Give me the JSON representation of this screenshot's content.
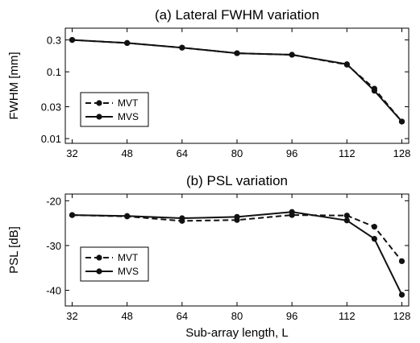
{
  "chart_data": [
    {
      "type": "line",
      "title": "(a) Lateral FWHM variation",
      "xlabel": "",
      "ylabel": "FWHM [mm]",
      "yscale": "log",
      "xlim": [
        30,
        130
      ],
      "ylim": [
        0.0085,
        0.45
      ],
      "xticks": [
        32,
        48,
        64,
        80,
        96,
        112,
        128
      ],
      "yticks": [
        0.01,
        0.03,
        0.1,
        0.3
      ],
      "ytick_labels": [
        "0.01",
        "0.03",
        "0.1",
        "0.3"
      ],
      "grid": false,
      "legend_position": "bottom-left",
      "x": [
        32,
        48,
        64,
        80,
        96,
        112,
        120,
        128
      ],
      "series": [
        {
          "name": "MVT",
          "style": "dashed",
          "values": [
            0.3,
            0.27,
            0.23,
            0.19,
            0.18,
            0.128,
            0.056,
            0.018
          ]
        },
        {
          "name": "MVS",
          "style": "solid",
          "values": [
            0.3,
            0.27,
            0.23,
            0.19,
            0.18,
            0.13,
            0.052,
            0.018
          ]
        }
      ]
    },
    {
      "type": "line",
      "title": "(b) PSL variation",
      "xlabel": "Sub-array length, L",
      "ylabel": "PSL [dB]",
      "yscale": "linear",
      "xlim": [
        30,
        130
      ],
      "ylim": [
        -43.5,
        -18.5
      ],
      "xticks": [
        32,
        48,
        64,
        80,
        96,
        112,
        128
      ],
      "yticks": [
        -40,
        -30,
        -20
      ],
      "ytick_labels": [
        "-40",
        "-30",
        "-20"
      ],
      "grid": false,
      "legend_position": "bottom-left",
      "x": [
        32,
        48,
        64,
        80,
        96,
        112,
        120,
        128
      ],
      "series": [
        {
          "name": "MVT",
          "style": "dashed",
          "values": [
            -23.2,
            -23.5,
            -24.5,
            -24.3,
            -23.2,
            -23.3,
            -25.8,
            -33.5
          ]
        },
        {
          "name": "MVS",
          "style": "solid",
          "values": [
            -23.2,
            -23.4,
            -23.9,
            -23.6,
            -22.5,
            -24.4,
            -28.5,
            -41.0
          ]
        }
      ]
    }
  ]
}
